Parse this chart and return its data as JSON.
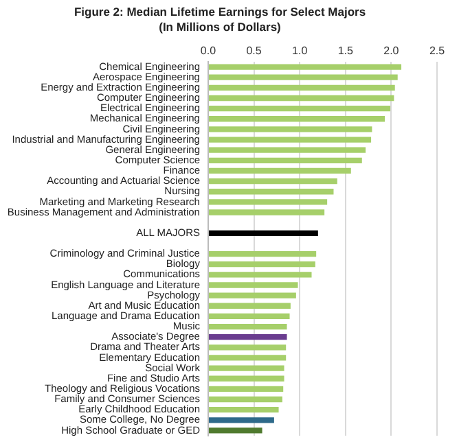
{
  "chart_data": {
    "type": "bar",
    "orientation": "horizontal",
    "title": "Figure 2: Median Lifetime Earnings for Select Majors",
    "subtitle": "(In Millions of Dollars)",
    "categories": [
      "Chemical Engineering",
      "Aerospace Engineering",
      "Energy and Extraction Engineering",
      "Computer Engineering",
      "Electrical Engineering",
      "Mechanical Engineering",
      "Civil Engineering",
      "Industrial and Manufacturing Engineering",
      "General Engineering",
      "Computer Science",
      "Finance",
      "Accounting and Actuarial Science",
      "Nursing",
      "Marketing and Marketing Research",
      "Business Management and Administration",
      null,
      "ALL MAJORS",
      null,
      "Criminology and Criminal Justice",
      "Biology",
      "Communications",
      "English Language and Literature",
      "Psychology",
      "Art and Music Education",
      "Language and Drama Education",
      "Music",
      "Associate's Degree",
      "Drama and Theater Arts",
      "Elementary Education",
      "Social Work",
      "Fine and Studio Arts",
      "Theology and Religious Vocations",
      "Family and Consumer Sciences",
      "Early Childhood Education",
      "Some College, No Degree",
      "High School Graduate or GED"
    ],
    "values": [
      2.11,
      2.07,
      2.04,
      2.03,
      1.99,
      1.93,
      1.79,
      1.78,
      1.72,
      1.68,
      1.56,
      1.41,
      1.37,
      1.3,
      1.27,
      null,
      1.2,
      null,
      1.18,
      1.17,
      1.13,
      0.98,
      0.96,
      0.9,
      0.89,
      0.86,
      0.86,
      0.85,
      0.85,
      0.83,
      0.83,
      0.82,
      0.81,
      0.77,
      0.72,
      0.59
    ],
    "colors": [
      "#a6cf6a",
      "#a6cf6a",
      "#a6cf6a",
      "#a6cf6a",
      "#a6cf6a",
      "#a6cf6a",
      "#a6cf6a",
      "#a6cf6a",
      "#a6cf6a",
      "#a6cf6a",
      "#a6cf6a",
      "#a6cf6a",
      "#a6cf6a",
      "#a6cf6a",
      "#a6cf6a",
      "#a6cf6a",
      "#000000",
      "#a6cf6a",
      "#a6cf6a",
      "#a6cf6a",
      "#a6cf6a",
      "#a6cf6a",
      "#a6cf6a",
      "#a6cf6a",
      "#a6cf6a",
      "#a6cf6a",
      "#6a3d8f",
      "#a6cf6a",
      "#a6cf6a",
      "#a6cf6a",
      "#a6cf6a",
      "#a6cf6a",
      "#a6cf6a",
      "#a6cf6a",
      "#2e6a8a",
      "#4f7a2e"
    ],
    "xlim": [
      0,
      2.5
    ],
    "xticks": [
      {
        "value": 0,
        "label": "0.0"
      },
      {
        "value": 0.5,
        "label": "0.5"
      },
      {
        "value": 1,
        "label": "1.0"
      },
      {
        "value": 1.5,
        "label": "1.5"
      },
      {
        "value": 2,
        "label": "2.0"
      },
      {
        "value": 2.5,
        "label": "2.5"
      }
    ],
    "grid": "x"
  }
}
